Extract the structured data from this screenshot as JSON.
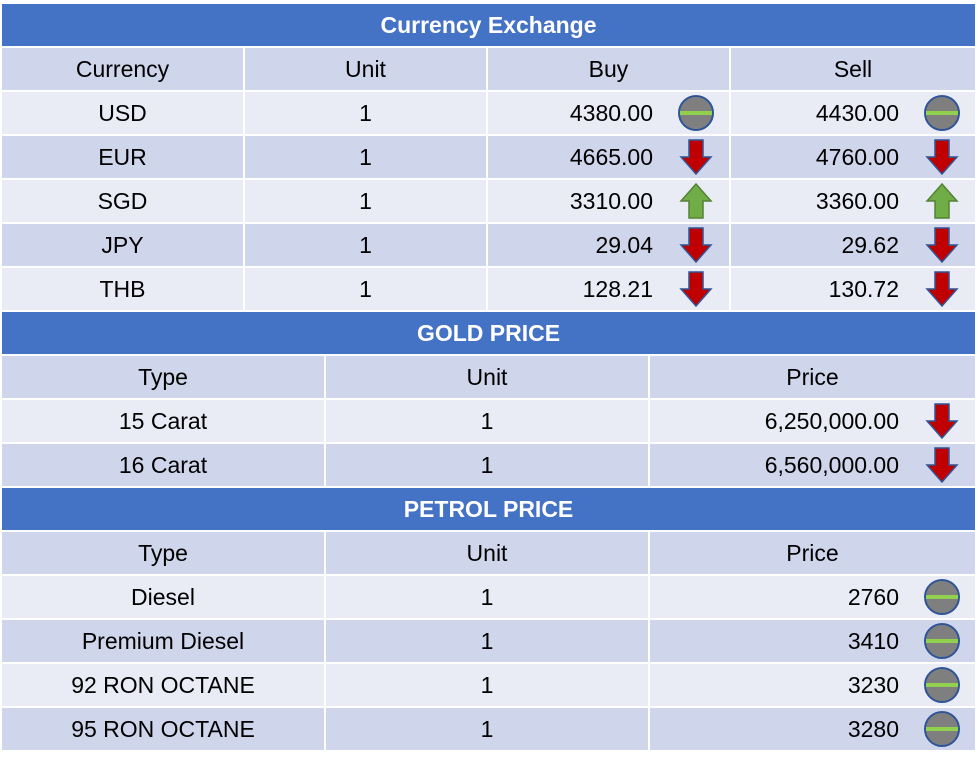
{
  "currency": {
    "title": "Currency Exchange",
    "headers": [
      "Currency",
      "Unit",
      "Buy",
      "Sell"
    ],
    "rows": [
      {
        "currency": "USD",
        "unit": "1",
        "buy": "4380.00",
        "buy_trend": "neutral",
        "sell": "4430.00",
        "sell_trend": "neutral"
      },
      {
        "currency": "EUR",
        "unit": "1",
        "buy": "4665.00",
        "buy_trend": "down",
        "sell": "4760.00",
        "sell_trend": "down"
      },
      {
        "currency": "SGD",
        "unit": "1",
        "buy": "3310.00",
        "buy_trend": "up",
        "sell": "3360.00",
        "sell_trend": "up"
      },
      {
        "currency": "JPY",
        "unit": "1",
        "buy": "29.04",
        "buy_trend": "down",
        "sell": "29.62",
        "sell_trend": "down"
      },
      {
        "currency": "THB",
        "unit": "1",
        "buy": "128.21",
        "buy_trend": "down",
        "sell": "130.72",
        "sell_trend": "down"
      }
    ]
  },
  "gold": {
    "title": "GOLD PRICE",
    "headers": [
      "Type",
      "Unit",
      "Price"
    ],
    "rows": [
      {
        "type": "15 Carat",
        "unit": "1",
        "price": "6,250,000.00",
        "trend": "down"
      },
      {
        "type": "16 Carat",
        "unit": "1",
        "price": "6,560,000.00",
        "trend": "down"
      }
    ]
  },
  "petrol": {
    "title": "PETROL PRICE",
    "headers": [
      "Type",
      "Unit",
      "Price"
    ],
    "rows": [
      {
        "type": "Diesel",
        "unit": "1",
        "price": "2760",
        "trend": "neutral"
      },
      {
        "type": "Premium Diesel",
        "unit": "1",
        "price": "3410",
        "trend": "neutral"
      },
      {
        "type": "92 RON OCTANE",
        "unit": "1",
        "price": "3230",
        "trend": "neutral"
      },
      {
        "type": "95 RON OCTANE",
        "unit": "1",
        "price": "3280",
        "trend": "neutral"
      }
    ]
  },
  "icons": {
    "up": "up-arrow-icon",
    "down": "down-arrow-icon",
    "neutral": "no-change-icon"
  },
  "colors": {
    "banner": "#4472c4",
    "row_dark": "#cfd5ea",
    "row_light": "#e9ebf5",
    "up": "#70ad47",
    "down": "#c00000",
    "neutral": "#7f7f7f",
    "neutral_line": "#92d050"
  }
}
